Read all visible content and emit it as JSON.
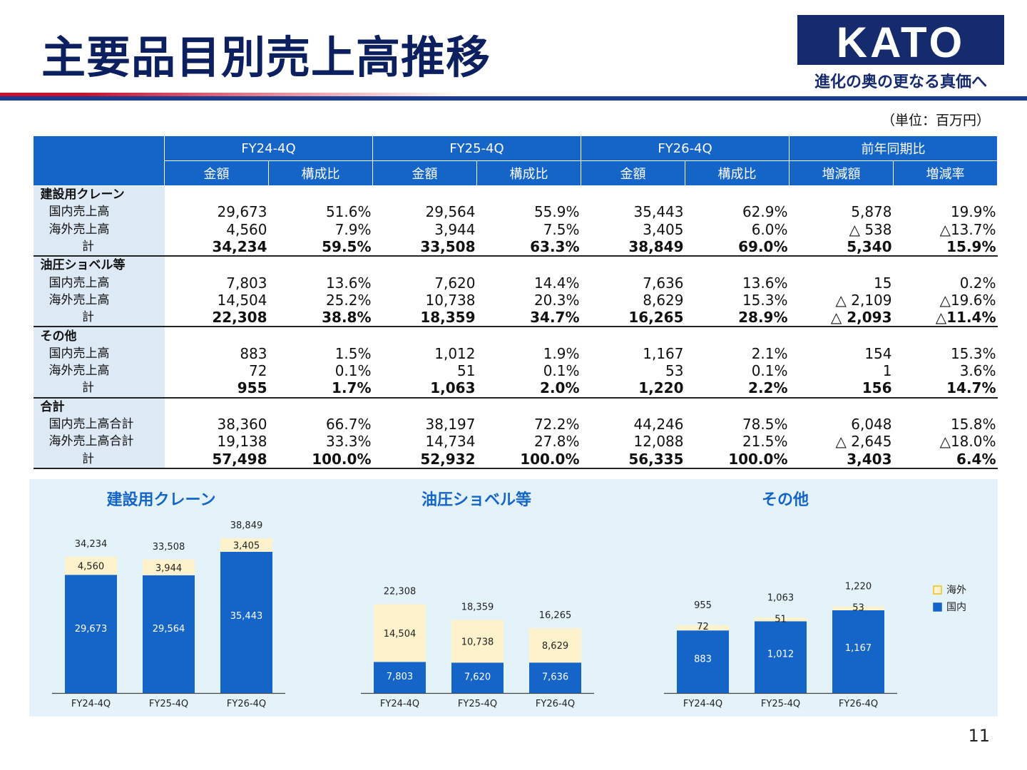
{
  "page": {
    "title": "主要品目別売上高推移",
    "logo_text": "KATO",
    "slogan": "進化の奥の更なる真価へ",
    "unit": "（単位：百万円）",
    "page_number": "11"
  },
  "table": {
    "periods": [
      "FY24-4Q",
      "FY25-4Q",
      "FY26-4Q"
    ],
    "yoy_header": "前年同期比",
    "sub_headers": [
      "金額",
      "構成比",
      "金額",
      "構成比",
      "金額",
      "構成比",
      "増減額",
      "増減率"
    ],
    "groups": [
      {
        "name": "建設用クレーン",
        "rows": [
          {
            "label": "国内売上高",
            "cells": [
              "29,673",
              "51.6%",
              "29,564",
              "55.9%",
              "35,443",
              "62.9%",
              "5,878",
              "19.9%"
            ]
          },
          {
            "label": "海外売上高",
            "cells": [
              "4,560",
              "7.9%",
              "3,944",
              "7.5%",
              "3,405",
              "6.0%",
              "△ 538",
              "△13.7%"
            ]
          },
          {
            "label": "計",
            "cells": [
              "34,234",
              "59.5%",
              "33,508",
              "63.3%",
              "38,849",
              "69.0%",
              "5,340",
              "15.9%"
            ]
          }
        ]
      },
      {
        "name": "油圧ショベル等",
        "rows": [
          {
            "label": "国内売上高",
            "cells": [
              "7,803",
              "13.6%",
              "7,620",
              "14.4%",
              "7,636",
              "13.6%",
              "15",
              "0.2%"
            ]
          },
          {
            "label": "海外売上高",
            "cells": [
              "14,504",
              "25.2%",
              "10,738",
              "20.3%",
              "8,629",
              "15.3%",
              "△ 2,109",
              "△19.6%"
            ]
          },
          {
            "label": "計",
            "cells": [
              "22,308",
              "38.8%",
              "18,359",
              "34.7%",
              "16,265",
              "28.9%",
              "△ 2,093",
              "△11.4%"
            ]
          }
        ]
      },
      {
        "name": "その他",
        "rows": [
          {
            "label": "国内売上高",
            "cells": [
              "883",
              "1.5%",
              "1,012",
              "1.9%",
              "1,167",
              "2.1%",
              "154",
              "15.3%"
            ]
          },
          {
            "label": "海外売上高",
            "cells": [
              "72",
              "0.1%",
              "51",
              "0.1%",
              "53",
              "0.1%",
              "1",
              "3.6%"
            ]
          },
          {
            "label": "計",
            "cells": [
              "955",
              "1.7%",
              "1,063",
              "2.0%",
              "1,220",
              "2.2%",
              "156",
              "14.7%"
            ]
          }
        ]
      },
      {
        "name": "合計",
        "rows": [
          {
            "label": "国内売上高合計",
            "cells": [
              "38,360",
              "66.7%",
              "38,197",
              "72.2%",
              "44,246",
              "78.5%",
              "6,048",
              "15.8%"
            ]
          },
          {
            "label": "海外売上高合計",
            "cells": [
              "19,138",
              "33.3%",
              "14,734",
              "27.8%",
              "12,088",
              "21.5%",
              "△ 2,645",
              "△18.0%"
            ]
          },
          {
            "label": "計",
            "cells": [
              "57,498",
              "100.0%",
              "52,932",
              "100.0%",
              "56,335",
              "100.0%",
              "3,403",
              "6.4%"
            ]
          }
        ]
      }
    ]
  },
  "chart_data": [
    {
      "type": "bar",
      "stacked": true,
      "title": "建設用クレーン",
      "categories": [
        "FY24-4Q",
        "FY25-4Q",
        "FY26-4Q"
      ],
      "series": [
        {
          "name": "国内",
          "values": [
            29673,
            29564,
            35443
          ],
          "color": "#1565c8"
        },
        {
          "name": "海外",
          "values": [
            4560,
            3944,
            3405
          ],
          "color": "#fdf2cc"
        }
      ],
      "totals": [
        34234,
        33508,
        38849
      ],
      "ylim": [
        0,
        40000
      ]
    },
    {
      "type": "bar",
      "stacked": true,
      "title": "油圧ショベル等",
      "categories": [
        "FY24-4Q",
        "FY25-4Q",
        "FY26-4Q"
      ],
      "series": [
        {
          "name": "国内",
          "values": [
            7803,
            7620,
            7636
          ],
          "color": "#1565c8"
        },
        {
          "name": "海外",
          "values": [
            14504,
            10738,
            8629
          ],
          "color": "#fdf2cc"
        }
      ],
      "totals": [
        22308,
        18359,
        16265
      ],
      "ylim": [
        0,
        40000
      ]
    },
    {
      "type": "bar",
      "stacked": true,
      "title": "その他",
      "categories": [
        "FY24-4Q",
        "FY25-4Q",
        "FY26-4Q"
      ],
      "series": [
        {
          "name": "国内",
          "values": [
            883,
            1012,
            1167
          ],
          "color": "#1565c8"
        },
        {
          "name": "海外",
          "values": [
            72,
            51,
            53
          ],
          "color": "#fdf2cc"
        }
      ],
      "totals": [
        955,
        1063,
        1220
      ],
      "ylim": [
        0,
        1600
      ]
    }
  ],
  "legend": {
    "items": [
      {
        "name": "海外",
        "color": "#fdf2cc",
        "border": "#f0c020"
      },
      {
        "name": "国内",
        "color": "#1565c8",
        "border": "#1565c8"
      }
    ]
  }
}
